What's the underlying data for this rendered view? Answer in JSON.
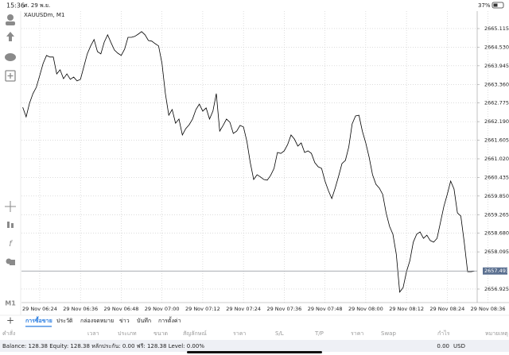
{
  "status_bar": {
    "time": "15:36",
    "date": "ศ. 29 พ.ย.",
    "battery": "37%"
  },
  "toolbar": {
    "timeframe": "M1"
  },
  "chart_data": {
    "type": "line",
    "title": "XAUUSDm, M1",
    "color": "#000000",
    "grid": true,
    "categories": [
      null,
      null,
      null,
      null,
      null,
      "29 Nov 06:24",
      null,
      null,
      null,
      null,
      null,
      null,
      null,
      null,
      null,
      null,
      null,
      "29 Nov 06:36",
      null,
      null,
      null,
      null,
      null,
      null,
      null,
      null,
      null,
      null,
      null,
      "29 Nov 06:48",
      null,
      null,
      null,
      null,
      null,
      null,
      null,
      null,
      null,
      null,
      null,
      "29 Nov 07:00",
      null,
      null,
      null,
      null,
      null,
      null,
      null,
      null,
      null,
      null,
      null,
      "29 Nov 07:12",
      null,
      null,
      null,
      null,
      null,
      null,
      null,
      null,
      null,
      null,
      null,
      "29 Nov 07:24",
      null,
      null,
      null,
      null,
      null,
      null,
      null,
      null,
      null,
      null,
      null,
      "29 Nov 07:36",
      null,
      null,
      null,
      null,
      null,
      null,
      null,
      null,
      null,
      null,
      null,
      "29 Nov 07:48",
      null,
      null,
      null,
      null,
      null,
      null,
      null,
      null,
      null,
      null,
      null,
      "29 Nov 08:00",
      null,
      null,
      null,
      null,
      null,
      null,
      null,
      null,
      null,
      null,
      null,
      "29 Nov 08:12",
      null,
      null,
      null,
      null,
      null,
      null,
      null,
      null,
      null,
      null,
      null,
      "29 Nov 08:24",
      null,
      null,
      null,
      null,
      null,
      null,
      null,
      null,
      null,
      null,
      null,
      "29 Nov 08:36"
    ],
    "values": [
      2662.64,
      2662.34,
      2662.77,
      2663.07,
      2663.27,
      2663.64,
      2664.02,
      2664.27,
      2664.22,
      2664.22,
      2663.69,
      2663.82,
      2663.54,
      2663.69,
      2663.52,
      2663.59,
      2663.47,
      2663.52,
      2663.92,
      2664.32,
      2664.57,
      2664.77,
      2664.39,
      2664.32,
      2664.69,
      2664.92,
      2664.67,
      2664.44,
      2664.34,
      2664.27,
      2664.47,
      2664.84,
      2664.84,
      2664.87,
      2664.94,
      2665.02,
      2664.92,
      2664.74,
      2664.72,
      2664.64,
      2664.57,
      2664.02,
      2663.07,
      2662.39,
      2662.57,
      2662.14,
      2662.27,
      2661.77,
      2661.97,
      2662.09,
      2662.27,
      2662.57,
      2662.74,
      2662.52,
      2662.62,
      2662.27,
      2662.52,
      2663.07,
      2661.89,
      2662.07,
      2662.27,
      2662.17,
      2661.82,
      2661.89,
      2662.07,
      2662.02,
      2661.57,
      2660.9,
      2660.37,
      2660.52,
      2660.45,
      2660.37,
      2660.35,
      2660.5,
      2660.72,
      2661.22,
      2661.19,
      2661.27,
      2661.47,
      2661.77,
      2661.64,
      2661.42,
      2661.52,
      2661.22,
      2661.27,
      2661.19,
      2660.9,
      2660.77,
      2660.72,
      2660.32,
      2660.02,
      2659.77,
      2660.1,
      2660.47,
      2660.87,
      2660.97,
      2661.39,
      2662.12,
      2662.37,
      2662.39,
      2661.89,
      2661.52,
      2661.07,
      2660.52,
      2660.22,
      2660.1,
      2659.9,
      2659.32,
      2658.9,
      2658.65,
      2658.02,
      2656.83,
      2656.97,
      2657.47,
      2657.82,
      2658.4,
      2658.65,
      2658.72,
      2658.52,
      2658.62,
      2658.45,
      2658.4,
      2658.52,
      2659.02,
      2659.52,
      2659.9,
      2660.32,
      2660.07,
      2659.32,
      2659.22,
      2658.4,
      2657.47,
      2657.47,
      2657.49,
      null,
      null,
      null,
      null
    ],
    "ylim": [
      2656.525,
      2665.664
    ],
    "yticks": [
      {
        "value": 2665.115,
        "label": "2665.115"
      },
      {
        "value": 2664.53,
        "label": "2664.530"
      },
      {
        "value": 2663.945,
        "label": "2663.945"
      },
      {
        "value": 2663.36,
        "label": "2663.360"
      },
      {
        "value": 2662.775,
        "label": "2662.775"
      },
      {
        "value": 2662.19,
        "label": "2662.190"
      },
      {
        "value": 2661.605,
        "label": "2661.605"
      },
      {
        "value": 2661.02,
        "label": "2661.020"
      },
      {
        "value": 2660.435,
        "label": "2660.435"
      },
      {
        "value": 2659.85,
        "label": "2659.850"
      },
      {
        "value": 2659.265,
        "label": "2659.265"
      },
      {
        "value": 2658.68,
        "label": "2658.680"
      },
      {
        "value": 2658.095,
        "label": "2658.095"
      },
      {
        "value": 2656.925,
        "label": "2656.925"
      }
    ],
    "current_price": 2657.493
  },
  "tabs": [
    "การซื้อขาย",
    "ประวัติ",
    "กล่องจดหมาย",
    "ข่าว",
    "บันทึก",
    "การตั้งค่า"
  ],
  "table_header": [
    "คำสั่ง",
    "เวลา",
    "ประเภท",
    "ขนาด",
    "สัญลักษณ์",
    "ราคา",
    "S/L",
    "T/P",
    "ราคา",
    "Swap",
    "กำไร",
    "หมายเหตุ"
  ],
  "balance": {
    "summary": "Balance: 128.38 Equity: 128.38 หลักประกัน: 0.00 ฟรี: 128.38 Level: 0.00%",
    "profit": "0.00",
    "currency": "USD"
  }
}
